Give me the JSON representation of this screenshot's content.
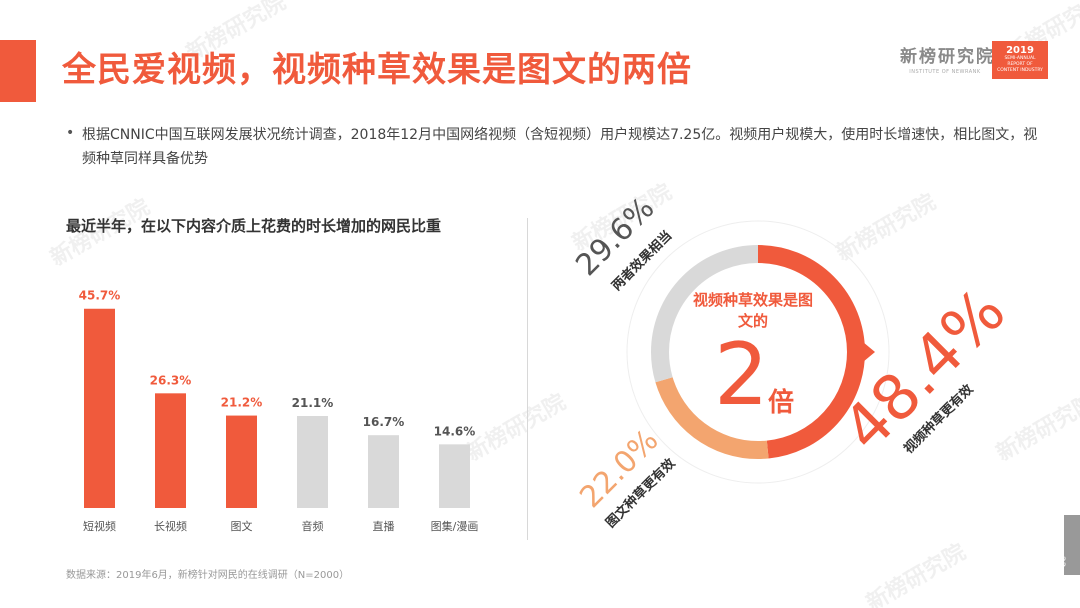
{
  "header": {
    "title": "全民爱视频，视频种草效果是图文的两倍",
    "brand_name": "新榜研究院",
    "brand_sub": "INSTITUTE OF NEWRANK",
    "badge_year": "2019",
    "badge_lines": [
      "SEMI-ANNUAL",
      "REPORT OF",
      "CONTENT INDUSTRY"
    ]
  },
  "note": {
    "bullet": "•",
    "text": "根据CNNIC中国互联网发展状况统计调查，2018年12月中国网络视频（含短视频）用户规模达7.25亿。视频用户规模大，使用时长增速快，相比图文，视频种草同样具备优势"
  },
  "watermark": "新榜研究院",
  "colors": {
    "accent": "#f05a3c",
    "gray": "#d9d9d9",
    "orange": "#f3a56f"
  },
  "chart_data": [
    {
      "type": "bar",
      "title": "最近半年，在以下内容介质上花费的时长增加的网民比重",
      "categories": [
        "短视频",
        "长视频",
        "图文",
        "音频",
        "直播",
        "图集/漫画"
      ],
      "values": [
        45.7,
        26.3,
        21.2,
        21.1,
        16.7,
        14.6
      ],
      "value_labels": [
        "45.7%",
        "26.3%",
        "21.2%",
        "21.1%",
        "16.7%",
        "14.6%"
      ],
      "highlighted": [
        true,
        true,
        true,
        false,
        false,
        false
      ],
      "ylim": [
        0,
        50
      ]
    },
    {
      "type": "pie",
      "labels": [
        "视频种草更有效",
        "图文种草更有效",
        "两者效果相当"
      ],
      "values": [
        48.4,
        22.0,
        29.6
      ],
      "value_labels": [
        "48.4%",
        "22.0%",
        "29.6%"
      ],
      "colors": [
        "#f05a3c",
        "#f3a56f",
        "#d9d9d9"
      ],
      "center_text": "视频种草效果是图文的",
      "center_big": "2",
      "center_unit": "倍"
    }
  ],
  "source": "数据来源：2019年6月，新榜针对网民的在线调研（N=2000）",
  "page_number": "22"
}
